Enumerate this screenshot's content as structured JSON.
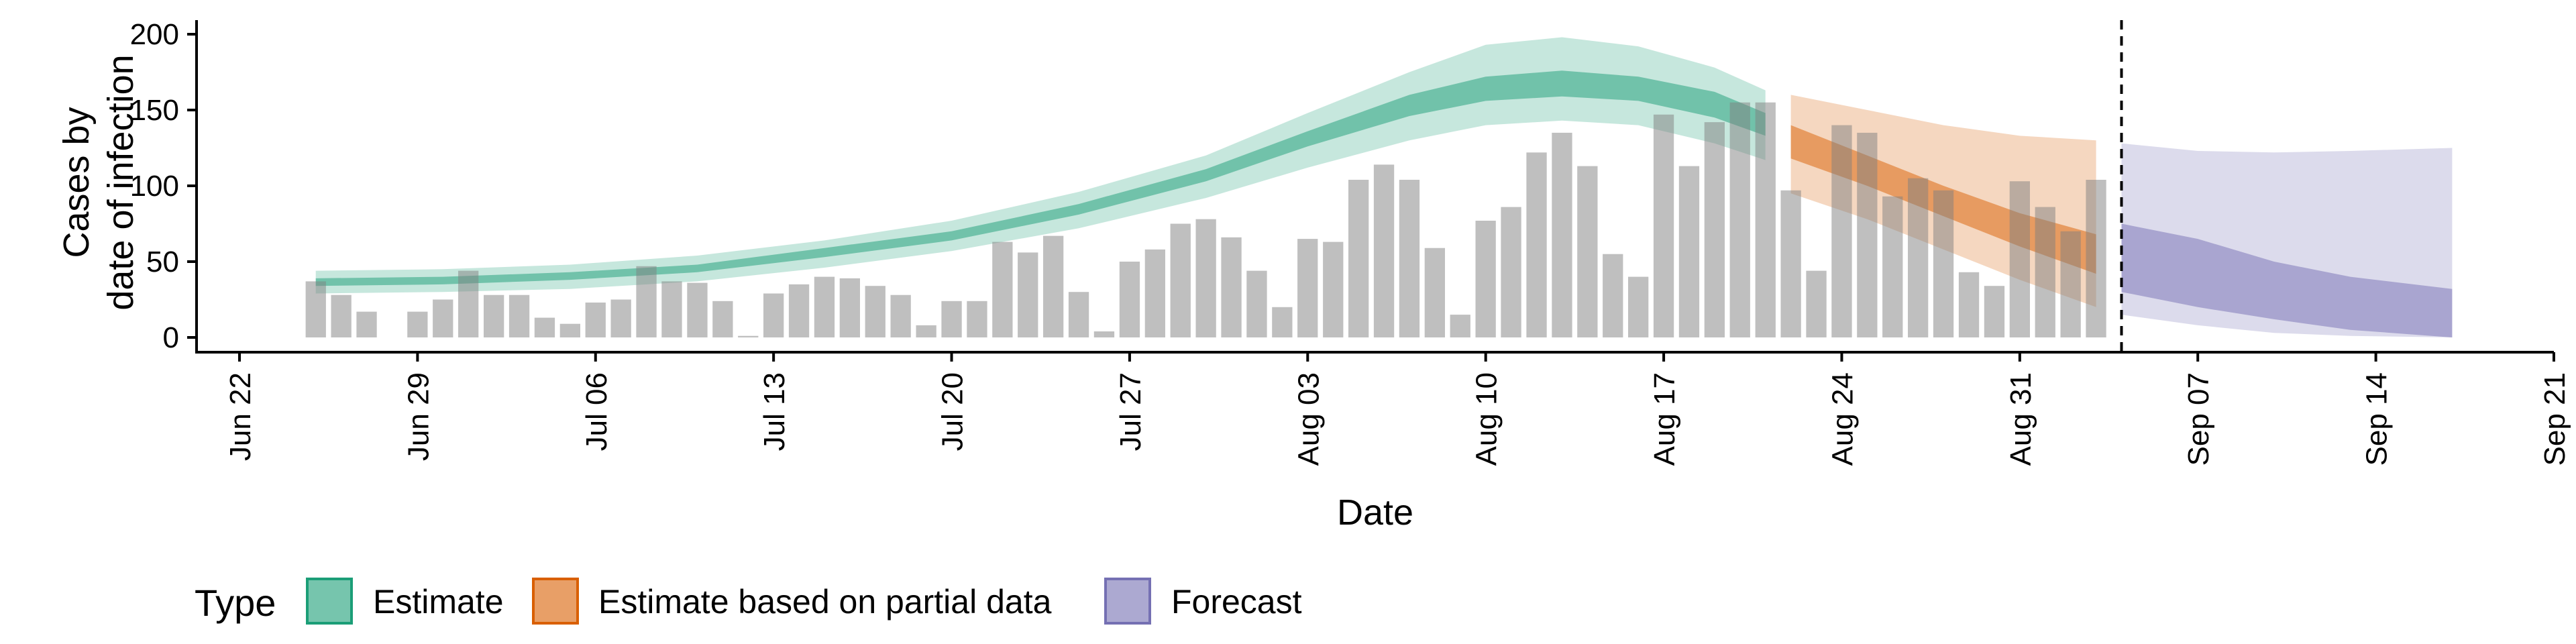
{
  "chart_data": {
    "type": "bar",
    "xlabel": "Date",
    "ylabel_lines": [
      "Cases by",
      "date of infection"
    ],
    "x_range": [
      "2020-06-20",
      "2020-09-21"
    ],
    "ylim": [
      -5,
      210
    ],
    "y_ticks": [
      0,
      50,
      100,
      150,
      200
    ],
    "x_ticks": [
      {
        "date": "2020-06-22",
        "label": "Jun 22"
      },
      {
        "date": "2020-06-29",
        "label": "Jun 29"
      },
      {
        "date": "2020-07-06",
        "label": "Jul 06"
      },
      {
        "date": "2020-07-13",
        "label": "Jul 13"
      },
      {
        "date": "2020-07-20",
        "label": "Jul 20"
      },
      {
        "date": "2020-07-27",
        "label": "Jul 27"
      },
      {
        "date": "2020-08-03",
        "label": "Aug 03"
      },
      {
        "date": "2020-08-10",
        "label": "Aug 10"
      },
      {
        "date": "2020-08-17",
        "label": "Aug 17"
      },
      {
        "date": "2020-08-24",
        "label": "Aug 24"
      },
      {
        "date": "2020-08-31",
        "label": "Aug 31"
      },
      {
        "date": "2020-09-07",
        "label": "Sep 07"
      },
      {
        "date": "2020-09-14",
        "label": "Sep 14"
      },
      {
        "date": "2020-09-21",
        "label": "Sep 21"
      }
    ],
    "bars": {
      "start_date": "2020-06-25",
      "end_date": "2020-09-03",
      "values": [
        37,
        28,
        17,
        0,
        17,
        25,
        44,
        28,
        28,
        13,
        9,
        23,
        25,
        47,
        37,
        36,
        24,
        1,
        29,
        35,
        40,
        39,
        34,
        28,
        8,
        24,
        24,
        63,
        56,
        67,
        30,
        4,
        50,
        58,
        75,
        78,
        66,
        44,
        20,
        65,
        63,
        104,
        114,
        104,
        59,
        15,
        77,
        86,
        122,
        135,
        113,
        55,
        40,
        147,
        113,
        142,
        155,
        155,
        97,
        44,
        140,
        135,
        93,
        105,
        97,
        43,
        34,
        103,
        86,
        70,
        104
      ]
    },
    "estimate_bands": [
      {
        "type": "Estimate",
        "color": "#1B9E77",
        "x": [
          "2020-06-25",
          "2020-06-30",
          "2020-07-05",
          "2020-07-10",
          "2020-07-15",
          "2020-07-20",
          "2020-07-25",
          "2020-07-30",
          "2020-08-03",
          "2020-08-07",
          "2020-08-10",
          "2020-08-13",
          "2020-08-16",
          "2020-08-19",
          "2020-08-21"
        ],
        "outer_low": [
          29,
          30,
          32,
          37,
          46,
          57,
          72,
          92,
          112,
          130,
          140,
          143,
          140,
          128,
          117
        ],
        "outer_high": [
          44,
          45,
          48,
          54,
          64,
          77,
          96,
          120,
          148,
          175,
          193,
          198,
          192,
          178,
          163
        ],
        "inner_low": [
          34,
          35,
          38,
          43,
          53,
          64,
          81,
          103,
          126,
          146,
          156,
          159,
          156,
          145,
          133
        ],
        "inner_high": [
          39,
          40,
          43,
          48,
          59,
          70,
          88,
          111,
          136,
          160,
          172,
          176,
          172,
          162,
          148
        ]
      },
      {
        "type": "Estimate based on partial data",
        "color": "#D95F02",
        "x": [
          "2020-08-22",
          "2020-08-25",
          "2020-08-28",
          "2020-08-31",
          "2020-09-03"
        ],
        "outer_low": [
          95,
          78,
          58,
          38,
          20
        ],
        "outer_high": [
          160,
          150,
          140,
          133,
          130
        ],
        "inner_low": [
          118,
          100,
          80,
          60,
          42
        ],
        "inner_high": [
          140,
          120,
          100,
          82,
          68
        ]
      },
      {
        "type": "Forecast",
        "color": "#7570B3",
        "x": [
          "2020-09-04",
          "2020-09-07",
          "2020-09-10",
          "2020-09-13",
          "2020-09-17"
        ],
        "outer_low": [
          15,
          8,
          3,
          1,
          0
        ],
        "outer_high": [
          128,
          123,
          122,
          123,
          125
        ],
        "inner_low": [
          30,
          20,
          12,
          5,
          0
        ],
        "inner_high": [
          75,
          65,
          50,
          40,
          32
        ]
      }
    ],
    "vline_date": "2020-09-04",
    "legend": {
      "title": "Type",
      "position": "bottom",
      "items": [
        {
          "label": "Estimate",
          "color": "#1B9E77"
        },
        {
          "label": "Estimate based on partial data",
          "color": "#D95F02"
        },
        {
          "label": "Forecast",
          "color": "#7570B3"
        }
      ]
    }
  }
}
